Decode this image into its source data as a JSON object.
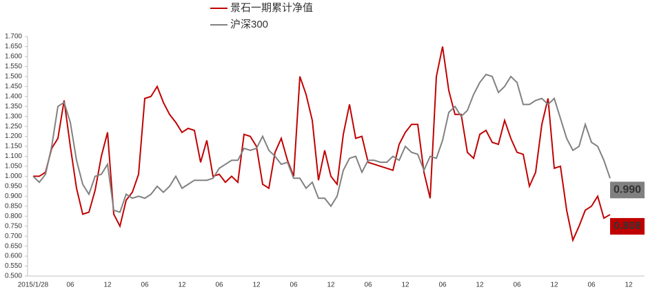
{
  "chart_data": {
    "type": "line",
    "categories": [
      "2015/1/28",
      null,
      null,
      null,
      null,
      null,
      "06",
      null,
      null,
      null,
      null,
      null,
      "12",
      null,
      null,
      null,
      null,
      null,
      "06",
      null,
      null,
      null,
      null,
      null,
      "12",
      null,
      null,
      null,
      null,
      null,
      "06",
      null,
      null,
      null,
      null,
      null,
      "12",
      null,
      null,
      null,
      null,
      null,
      "06",
      null,
      null,
      null,
      null,
      null,
      "12",
      null,
      null,
      null,
      null,
      null,
      "06",
      null,
      null,
      null,
      null,
      null,
      "12",
      null,
      null,
      null,
      null,
      null,
      "06",
      null,
      null,
      null,
      null,
      null,
      "12",
      null,
      null,
      null,
      null,
      null,
      "06",
      null,
      null,
      null,
      null,
      null,
      "12",
      null,
      null,
      null,
      null,
      null,
      "06",
      null,
      null,
      null,
      null,
      null,
      "12"
    ],
    "series": [
      {
        "name": "景石一期累计净值",
        "color": "#c00000",
        "values": [
          1.0,
          1.0,
          1.02,
          1.14,
          1.19,
          1.38,
          1.15,
          0.94,
          0.81,
          0.82,
          0.93,
          1.1,
          1.22,
          0.81,
          0.75,
          0.88,
          0.92,
          1.01,
          1.39,
          1.4,
          1.45,
          1.37,
          1.31,
          1.27,
          1.22,
          1.24,
          1.23,
          1.07,
          1.18,
          1.0,
          1.01,
          0.97,
          1.0,
          0.97,
          1.21,
          1.2,
          1.15,
          0.96,
          0.94,
          1.12,
          1.19,
          1.08,
          1.0,
          1.5,
          1.41,
          1.28,
          0.98,
          1.13,
          1.0,
          0.96,
          1.21,
          1.36,
          1.19,
          1.2,
          1.07,
          1.06,
          1.05,
          1.04,
          1.03,
          1.16,
          1.22,
          1.26,
          1.26,
          1.02,
          0.89,
          1.5,
          1.65,
          1.43,
          1.31,
          1.31,
          1.12,
          1.09,
          1.21,
          1.23,
          1.17,
          1.16,
          1.28,
          1.19,
          1.12,
          1.11,
          0.95,
          1.02,
          1.26,
          1.39,
          1.04,
          1.05,
          0.83,
          0.68,
          0.75,
          0.83,
          0.85,
          0.9,
          0.79,
          0.808,
          null,
          null,
          null
        ],
        "value_labels": [
          null,
          null,
          null,
          null,
          null,
          null,
          null,
          null,
          null,
          null,
          null,
          null,
          null,
          null,
          null,
          null,
          null,
          null,
          null,
          null,
          null,
          null,
          null,
          null,
          null,
          null,
          null,
          null,
          null,
          null,
          null,
          null,
          null,
          null,
          null,
          null,
          null,
          null,
          null,
          null,
          null,
          null,
          null,
          null,
          null,
          null,
          null,
          null,
          null,
          null,
          null,
          null,
          null,
          null,
          null,
          null,
          null,
          null,
          null,
          null,
          null,
          null,
          null,
          null,
          null,
          null,
          null,
          null,
          null,
          null,
          null,
          null,
          null,
          null,
          null,
          null,
          null,
          null,
          null,
          null,
          null,
          null,
          null,
          null,
          null,
          null,
          null,
          null,
          null,
          null,
          null,
          null,
          null,
          "0.808",
          null,
          null,
          null
        ]
      },
      {
        "name": "沪深300",
        "color": "#808080",
        "values": [
          1.0,
          0.97,
          1.01,
          1.15,
          1.35,
          1.37,
          1.27,
          1.08,
          0.96,
          0.91,
          1.0,
          1.01,
          1.06,
          0.83,
          0.82,
          0.91,
          0.89,
          0.9,
          0.89,
          0.91,
          0.95,
          0.92,
          0.95,
          1.0,
          0.94,
          0.96,
          0.98,
          0.98,
          0.98,
          0.99,
          1.04,
          1.06,
          1.08,
          1.08,
          1.14,
          1.13,
          1.14,
          1.2,
          1.13,
          1.1,
          1.06,
          1.07,
          0.99,
          0.99,
          0.94,
          0.97,
          0.89,
          0.89,
          0.85,
          0.9,
          1.03,
          1.09,
          1.1,
          1.02,
          1.08,
          1.08,
          1.07,
          1.07,
          1.1,
          1.08,
          1.15,
          1.12,
          1.11,
          1.03,
          1.1,
          1.09,
          1.18,
          1.32,
          1.35,
          1.3,
          1.33,
          1.41,
          1.47,
          1.51,
          1.5,
          1.42,
          1.45,
          1.5,
          1.47,
          1.36,
          1.36,
          1.38,
          1.39,
          1.36,
          1.39,
          1.29,
          1.19,
          1.13,
          1.15,
          1.26,
          1.17,
          1.15,
          1.08,
          0.99,
          null,
          null,
          null
        ],
        "value_labels": [
          null,
          null,
          null,
          null,
          null,
          null,
          null,
          null,
          null,
          null,
          null,
          null,
          null,
          null,
          null,
          null,
          null,
          null,
          null,
          null,
          null,
          null,
          null,
          null,
          null,
          null,
          null,
          null,
          null,
          null,
          null,
          null,
          null,
          null,
          null,
          null,
          null,
          null,
          null,
          null,
          null,
          null,
          null,
          null,
          null,
          null,
          null,
          null,
          null,
          null,
          null,
          null,
          null,
          null,
          null,
          null,
          null,
          null,
          null,
          null,
          null,
          null,
          null,
          null,
          null,
          null,
          null,
          null,
          null,
          null,
          null,
          null,
          null,
          null,
          null,
          null,
          null,
          null,
          null,
          null,
          null,
          null,
          null,
          null,
          null,
          null,
          null,
          null,
          null,
          null,
          null,
          null,
          null,
          "0.990",
          null,
          null,
          null
        ]
      }
    ],
    "ylim": [
      0.5,
      1.7
    ],
    "yticks": [
      {
        "value": 0.5,
        "label": "0.500"
      },
      {
        "value": 0.55,
        "label": "0.550"
      },
      {
        "value": 0.6,
        "label": "0.600"
      },
      {
        "value": 0.65,
        "label": "0.650"
      },
      {
        "value": 0.7,
        "label": "0.700"
      },
      {
        "value": 0.75,
        "label": "0.750"
      },
      {
        "value": 0.8,
        "label": "0.800"
      },
      {
        "value": 0.85,
        "label": "0.850"
      },
      {
        "value": 0.9,
        "label": "0.900"
      },
      {
        "value": 0.95,
        "label": "0.950"
      },
      {
        "value": 1.0,
        "label": "1.000"
      },
      {
        "value": 1.05,
        "label": "1.050"
      },
      {
        "value": 1.1,
        "label": "1.100"
      },
      {
        "value": 1.15,
        "label": "1.150"
      },
      {
        "value": 1.2,
        "label": "1.200"
      },
      {
        "value": 1.25,
        "label": "1.250"
      },
      {
        "value": 1.3,
        "label": "1.300"
      },
      {
        "value": 1.35,
        "label": "1.350"
      },
      {
        "value": 1.4,
        "label": "1.400"
      },
      {
        "value": 1.45,
        "label": "1.450"
      },
      {
        "value": 1.5,
        "label": "1.500"
      },
      {
        "value": 1.55,
        "label": "1.550"
      },
      {
        "value": 1.6,
        "label": "1.600"
      },
      {
        "value": 1.65,
        "label": "1.650"
      },
      {
        "value": 1.7,
        "label": "1.700"
      }
    ],
    "grid": false,
    "legend": "top"
  }
}
